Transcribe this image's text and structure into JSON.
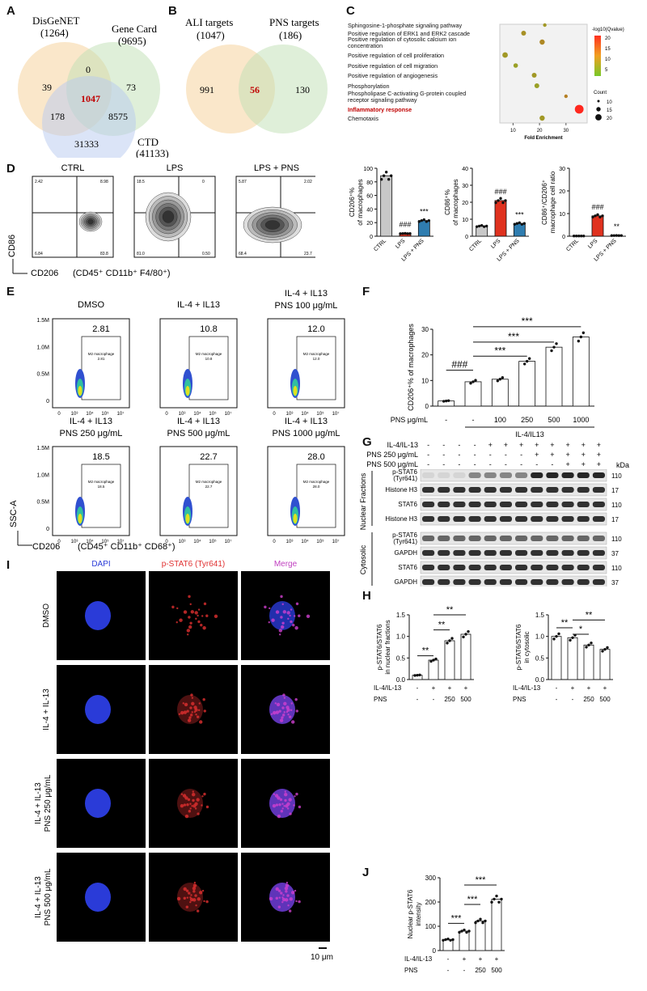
{
  "panels": {
    "A": "A",
    "B": "B",
    "C": "C",
    "D": "D",
    "E": "E",
    "F": "F",
    "G": "G",
    "H": "H",
    "I": "I",
    "J": "J"
  },
  "venn_a": {
    "sets": [
      {
        "name": "DisGeNET",
        "count": "(1264)",
        "color": "#f3c98a"
      },
      {
        "name": "Gene Card",
        "count": "(9695)",
        "color": "#bfe0b3"
      },
      {
        "name": "CTD",
        "count": "(41133)",
        "color": "#b7c9ef"
      }
    ],
    "regions": [
      "39",
      "0",
      "73",
      "1047",
      "178",
      "8575",
      "31333"
    ]
  },
  "venn_b": {
    "sets": [
      {
        "name": "ALI targets",
        "count": "(1047)",
        "color": "#f3c98a"
      },
      {
        "name": "PNS targets",
        "count": "(186)",
        "color": "#bfe0b3"
      }
    ],
    "regions": [
      "991",
      "56",
      "130"
    ]
  },
  "chart_data": [
    {
      "type": "scatter",
      "panel": "C",
      "title": "",
      "xlabel": "Fold Enrichment",
      "xticks": [
        "10",
        "20",
        "30"
      ],
      "legend_title": "-log10(Qvalue)",
      "color_ticks": [
        "20",
        "15",
        "10",
        "5"
      ],
      "size_title": "Count",
      "size_ticks": [
        "10",
        "15",
        "20"
      ],
      "terms": [
        "Sphingosine-1-phosphate signaling pathway",
        "Positive regulation of ERK1 and ERK2 cascade",
        "Positive regulation of cytosolic calcium ion concentration",
        "Positive regulation of cell proliferation",
        "Positive regulation of cell migration",
        "Positive regulation of angiogenesis",
        "Phosphorylation",
        "Phospholipase C-activating G-protein coupled receptor signaling pathway",
        "Inflammatory response",
        "Chemotaxis"
      ],
      "highlight": "Inflammatory response",
      "points": [
        {
          "term": 0,
          "x": 22,
          "count": 6,
          "q": 6
        },
        {
          "term": 1,
          "x": 14,
          "count": 10,
          "q": 7
        },
        {
          "term": 2,
          "x": 21,
          "count": 11,
          "q": 8
        },
        {
          "term": 3,
          "x": 7,
          "count": 12,
          "q": 6
        },
        {
          "term": 4,
          "x": 11,
          "count": 9,
          "q": 5
        },
        {
          "term": 5,
          "x": 18,
          "count": 10,
          "q": 6
        },
        {
          "term": 6,
          "x": 19,
          "count": 10,
          "q": 5
        },
        {
          "term": 7,
          "x": 30,
          "count": 6,
          "q": 9
        },
        {
          "term": 8,
          "x": 35,
          "count": 22,
          "q": 20
        },
        {
          "term": 9,
          "x": 21,
          "count": 11,
          "q": 6
        }
      ],
      "xlim": [
        5,
        38
      ]
    },
    {
      "type": "bar",
      "panel": "D1",
      "ylabel": "CD206⁺%\nof macrophages",
      "categories": [
        "CTRL",
        "LPS",
        "LPS + PNS"
      ],
      "values": [
        89,
        4,
        23
      ],
      "ylim": [
        0,
        100
      ],
      "yticks": [
        "0",
        "20",
        "40",
        "60",
        "80",
        "100"
      ],
      "colors": [
        "#c8c8c8",
        "#e0321f",
        "#2f7db0"
      ],
      "annot": [
        "",
        "###",
        "***"
      ]
    },
    {
      "type": "bar",
      "panel": "D2",
      "ylabel": "CD86⁺%\nof macrophages",
      "categories": [
        "CTRL",
        "LPS",
        "LPS + PNS"
      ],
      "values": [
        6,
        21,
        7.5
      ],
      "ylim": [
        0,
        40
      ],
      "yticks": [
        "0",
        "10",
        "20",
        "30",
        "40"
      ],
      "colors": [
        "#c8c8c8",
        "#e0321f",
        "#2f7db0"
      ],
      "annot": [
        "",
        "###",
        "***"
      ]
    },
    {
      "type": "bar",
      "panel": "D3",
      "ylabel": "CD86⁺/CD206⁺\nmacrophage cell ratio",
      "categories": [
        "CTRL",
        "LPS",
        "LPS + PNS"
      ],
      "values": [
        0.1,
        9,
        0.3
      ],
      "ylim": [
        0,
        30
      ],
      "yticks": [
        "0",
        "10",
        "20",
        "30"
      ],
      "colors": [
        "#c8c8c8",
        "#e0321f",
        "#2f7db0"
      ],
      "annot": [
        "",
        "###",
        "**"
      ]
    },
    {
      "type": "bar",
      "panel": "F",
      "ylabel": "CD206⁺% of macrophages",
      "categories": [
        "-",
        "-",
        "100",
        "250",
        "500",
        "1000"
      ],
      "values": [
        2,
        9.5,
        10.5,
        17.5,
        23,
        27
      ],
      "ylim": [
        0,
        30
      ],
      "yticks": [
        "0",
        "10",
        "20",
        "30"
      ],
      "xrow_label": "PNS μg/mL",
      "group_label": "IL-4/IL13",
      "annot": [
        "###",
        "***",
        "***",
        "***"
      ]
    },
    {
      "type": "bar",
      "panel": "H1",
      "ylabel": "p-STAT6/STAT6\nin nuclear fractions",
      "categories": [
        "-",
        "+",
        "+",
        "+"
      ],
      "values": [
        0.1,
        0.45,
        0.9,
        1.05
      ],
      "ylim": [
        0,
        1.5
      ],
      "yticks": [
        "0.0",
        "0.5",
        "1.0",
        "1.5"
      ],
      "row1_label": "IL-4/IL-13",
      "row1": [
        "-",
        "+",
        "+",
        "+"
      ],
      "row2_label": "PNS",
      "row2": [
        "-",
        "-",
        "250",
        "500"
      ],
      "annot": [
        "**",
        "**",
        "**"
      ]
    },
    {
      "type": "bar",
      "panel": "H2",
      "ylabel": "p-STAT6/STAT6\nin cytosolic",
      "categories": [
        "-",
        "+",
        "+",
        "+"
      ],
      "values": [
        1.0,
        0.97,
        0.8,
        0.7
      ],
      "ylim": [
        0,
        1.5
      ],
      "yticks": [
        "0.0",
        "0.5",
        "1.0",
        "1.5"
      ],
      "row1_label": "IL-4/IL-13",
      "row1": [
        "-",
        "+",
        "+",
        "+"
      ],
      "row2_label": "PNS",
      "row2": [
        "-",
        "-",
        "250",
        "500"
      ],
      "annot": [
        "**",
        "*",
        "**"
      ]
    },
    {
      "type": "bar",
      "panel": "J",
      "ylabel": "Nuclear p-STAT6\nintensity",
      "categories": [
        "-",
        "+",
        "+",
        "+"
      ],
      "values": [
        45,
        80,
        122,
        212
      ],
      "ylim": [
        0,
        300
      ],
      "yticks": [
        "0",
        "100",
        "200",
        "300"
      ],
      "row1_label": "IL-4/IL-13",
      "row1": [
        "-",
        "+",
        "+",
        "+"
      ],
      "row2_label": "PNS",
      "row2": [
        "-",
        "-",
        "250",
        "500"
      ],
      "annot": [
        "***",
        "***",
        "***"
      ]
    }
  ],
  "flow_d": {
    "titles": [
      "CTRL",
      "LPS",
      "LPS + PNS"
    ],
    "quads": [
      [
        "2.42",
        "8.98",
        "6.84",
        "83.8"
      ],
      [
        "18.5",
        "0",
        "81.0",
        "0.50"
      ],
      [
        "5.87",
        "2.02",
        "68.4",
        "23.7"
      ]
    ],
    "ylabel": "CD86",
    "xlabel": "CD206",
    "gate": "(CD45⁺ CD11b⁺ F4/80⁺)"
  },
  "flow_e": {
    "titles": [
      "DMSO",
      "IL-4 + IL13",
      "IL-4 + IL13\nPNS 100 μg/mL",
      "IL-4 + IL13\nPNS 250 μg/mL",
      "IL-4 + IL13\nPNS 500 μg/mL",
      "IL-4 + IL13\nPNS 1000 μg/mL"
    ],
    "values": [
      "2.81",
      "10.8",
      "12.0",
      "18.5",
      "22.7",
      "28.0"
    ],
    "gate_label": "M2 macrophage",
    "yticks": [
      "1.5M",
      "1.0M",
      "0.5M",
      "0"
    ],
    "ylabel": "SSC-A",
    "xlabel": "CD206",
    "gate": "(CD45⁺ CD11b⁺ CD68⁺)"
  },
  "blot": {
    "row1_label": "IL-4/IL-13",
    "row1": [
      "-",
      "-",
      "-",
      "-",
      "+",
      "+",
      "+",
      "+",
      "+",
      "+",
      "+",
      "+"
    ],
    "row2_label": "PNS 250 μg/mL",
    "row2": [
      "-",
      "-",
      "-",
      "-",
      "-",
      "-",
      "-",
      "+",
      "+",
      "+",
      "+",
      "+"
    ],
    "row3_label": "PNS 500 μg/mL",
    "row3": [
      "-",
      "-",
      "-",
      "-",
      "-",
      "-",
      "-",
      "-",
      "-",
      "+",
      "+",
      "+"
    ],
    "kda": "kDa",
    "bands": [
      {
        "label": "p-STAT6\n(Tyr641)",
        "kd": "110"
      },
      {
        "label": "Histone H3",
        "kd": "17"
      },
      {
        "label": "STAT6",
        "kd": "110"
      },
      {
        "label": "Histone H3",
        "kd": "17"
      },
      {
        "label": "p-STAT6\n(Tyr641)",
        "kd": "110"
      },
      {
        "label": "GAPDH",
        "kd": "37"
      },
      {
        "label": "STAT6",
        "kd": "110"
      },
      {
        "label": "GAPDH",
        "kd": "37"
      }
    ],
    "group1": "Nuclear Fractions",
    "group2": "Cytosolic"
  },
  "if_panel": {
    "cols": [
      {
        "label": "DAPI",
        "color": "#2a3bd8"
      },
      {
        "label": "p-STAT6 (Tyr641)",
        "color": "#e03030"
      },
      {
        "label": "Merge",
        "color": "#c040c0"
      }
    ],
    "rows": [
      "DMSO",
      "IL-4 + IL-13",
      "IL-4 + IL-13\nPNS 250 μg/mL",
      "IL-4 + IL-13\nPNS 500 μg/mL"
    ],
    "scale": "10 μm"
  }
}
